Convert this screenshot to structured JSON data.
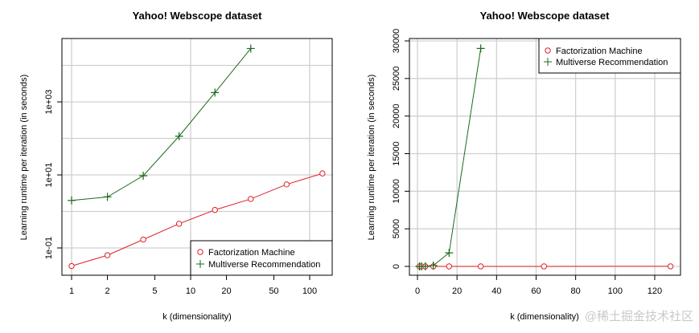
{
  "colors": {
    "fm": "#e0202a",
    "mr": "#1a6b1a",
    "grid": "#d0d0d0"
  },
  "watermark": "@稀土掘金技术社区",
  "chart_data": [
    {
      "type": "line",
      "title": "Yahoo! Webscope dataset",
      "xlabel": "k (dimensionality)",
      "ylabel": "Learning runtime per iteration (in seconds)",
      "xscale": "log",
      "yscale": "log",
      "xlim": [
        1,
        128
      ],
      "ylim": [
        0.03,
        30000
      ],
      "xticks": [
        1,
        2,
        5,
        10,
        20,
        50,
        100
      ],
      "xtick_labels": [
        "1",
        "2",
        "5",
        "10",
        "20",
        "50",
        "100"
      ],
      "yticks": [
        0.1,
        10,
        1000
      ],
      "ytick_labels": [
        "1e-01",
        "1e+01",
        "1e+03"
      ],
      "grid": true,
      "legend_position": "bottom-right",
      "series": [
        {
          "name": "Factorization Machine",
          "marker": "circle",
          "x": [
            1,
            2,
            4,
            8,
            16,
            32,
            64,
            128
          ],
          "y": [
            0.032,
            0.063,
            0.17,
            0.46,
            1.1,
            2.2,
            5.5,
            11
          ]
        },
        {
          "name": "Multiverse Recommendation",
          "marker": "plus",
          "x": [
            1,
            2,
            4,
            8,
            16,
            32
          ],
          "y": [
            2.0,
            2.5,
            9.5,
            115,
            1800,
            29000
          ]
        }
      ]
    },
    {
      "type": "line",
      "title": "Yahoo! Webscope dataset",
      "xlabel": "k (dimensionality)",
      "ylabel": "Learning runtime per iteration (in seconds)",
      "xscale": "linear",
      "yscale": "linear",
      "xlim": [
        0,
        128
      ],
      "ylim": [
        0,
        30000
      ],
      "xticks": [
        0,
        20,
        40,
        60,
        80,
        100,
        120
      ],
      "xtick_labels": [
        "0",
        "20",
        "40",
        "60",
        "80",
        "100",
        "120"
      ],
      "yticks": [
        0,
        5000,
        10000,
        15000,
        20000,
        25000,
        30000
      ],
      "ytick_labels": [
        "0",
        "5000",
        "10000",
        "15000",
        "20000",
        "25000",
        "30000"
      ],
      "grid": true,
      "legend_position": "top-right",
      "series": [
        {
          "name": "Factorization Machine",
          "marker": "circle",
          "x": [
            1,
            2,
            4,
            8,
            16,
            32,
            64,
            128
          ],
          "y": [
            0.032,
            0.063,
            0.17,
            0.46,
            1.1,
            2.2,
            5.5,
            11
          ]
        },
        {
          "name": "Multiverse Recommendation",
          "marker": "plus",
          "x": [
            1,
            2,
            4,
            8,
            16,
            32
          ],
          "y": [
            2.0,
            2.5,
            9.5,
            115,
            1800,
            29000
          ]
        }
      ]
    }
  ]
}
